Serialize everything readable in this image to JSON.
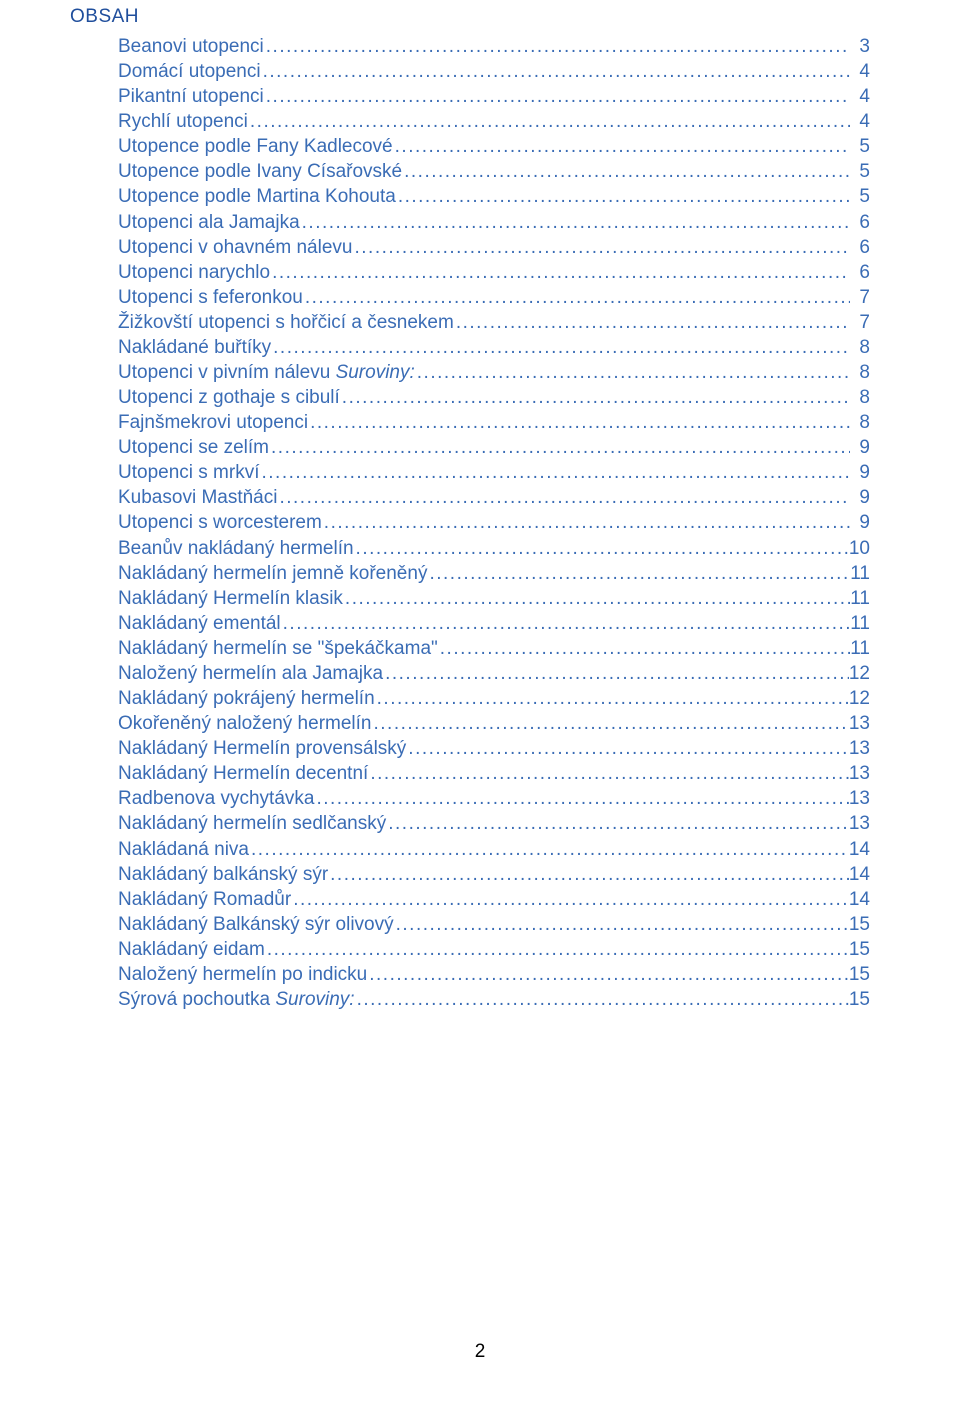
{
  "heading": "OBSAH",
  "page_number": "2",
  "colors": {
    "text": "#3a6cb5",
    "heading": "#1f4e9c",
    "background": "#ffffff"
  },
  "typography": {
    "font_family": "Arial",
    "font_size": 19,
    "line_height": 1.32
  },
  "toc": [
    {
      "title": "Beanovi utopenci",
      "page": "3",
      "italic_suffix": ""
    },
    {
      "title": "Domácí utopenci",
      "page": "4",
      "italic_suffix": ""
    },
    {
      "title": "Pikantní utopenci",
      "page": "4",
      "italic_suffix": ""
    },
    {
      "title": "Rychlí utopenci",
      "page": "4",
      "italic_suffix": ""
    },
    {
      "title": "Utopence podle Fany Kadlecové",
      "page": "5",
      "italic_suffix": ""
    },
    {
      "title": "Utopence podle Ivany Císařovské",
      "page": "5",
      "italic_suffix": ""
    },
    {
      "title": "Utopence podle Martina Kohouta",
      "page": "5",
      "italic_suffix": ""
    },
    {
      "title": "Utopenci ala Jamajka",
      "page": "6",
      "italic_suffix": ""
    },
    {
      "title": "Utopenci v ohavném nálevu",
      "page": "6",
      "italic_suffix": ""
    },
    {
      "title": "Utopenci narychlo",
      "page": "6",
      "italic_suffix": ""
    },
    {
      "title": "Utopenci s feferonkou",
      "page": "7",
      "italic_suffix": ""
    },
    {
      "title": "Žižkovští utopenci s hořčicí a česnekem",
      "page": "7",
      "italic_suffix": ""
    },
    {
      "title": "Nakládané buřtíky",
      "page": "8",
      "italic_suffix": ""
    },
    {
      "title": "Utopenci v pivním nálevu  ",
      "page": "8",
      "italic_suffix": "Suroviny:"
    },
    {
      "title": "Utopenci z gothaje s cibulí",
      "page": "8",
      "italic_suffix": ""
    },
    {
      "title": "Fajnšmekrovi utopenci",
      "page": "8",
      "italic_suffix": ""
    },
    {
      "title": "Utopenci se zelím",
      "page": "9",
      "italic_suffix": ""
    },
    {
      "title": "Utopenci s mrkví",
      "page": "9",
      "italic_suffix": ""
    },
    {
      "title": "Kubasovi Mastňáci",
      "page": "9",
      "italic_suffix": ""
    },
    {
      "title": "Utopenci s worcesterem",
      "page": "9",
      "italic_suffix": ""
    },
    {
      "title": "Beanův nakládaný hermelín",
      "page": "10",
      "italic_suffix": ""
    },
    {
      "title": "Nakládaný hermelín jemně kořeněný",
      "page": "11",
      "italic_suffix": ""
    },
    {
      "title": "Nakládaný Hermelín klasik",
      "page": "11",
      "italic_suffix": ""
    },
    {
      "title": "Nakládaný ementál",
      "page": "11",
      "italic_suffix": ""
    },
    {
      "title": "Nakládaný hermelín se \"špekáčkama\"",
      "page": "11",
      "italic_suffix": ""
    },
    {
      "title": "Naložený hermelín ala Jamajka",
      "page": "12",
      "italic_suffix": ""
    },
    {
      "title": "Nakládaný pokrájený hermelín",
      "page": "12",
      "italic_suffix": ""
    },
    {
      "title": "Okořeněný naložený hermelín",
      "page": "13",
      "italic_suffix": ""
    },
    {
      "title": "Nakládaný Hermelín provensálský",
      "page": "13",
      "italic_suffix": ""
    },
    {
      "title": "Nakládaný Hermelín decentní",
      "page": "13",
      "italic_suffix": ""
    },
    {
      "title": "Radbenova vychytávka",
      "page": "13",
      "italic_suffix": ""
    },
    {
      "title": "Nakládaný hermelín sedlčanský",
      "page": "13",
      "italic_suffix": ""
    },
    {
      "title": "Nakládaná niva",
      "page": "14",
      "italic_suffix": ""
    },
    {
      "title": "Nakládaný balkánský sýr",
      "page": "14",
      "italic_suffix": ""
    },
    {
      "title": "Nakládaný Romadůr",
      "page": "14",
      "italic_suffix": ""
    },
    {
      "title": "Nakládaný Balkánský sýr olivový",
      "page": "15",
      "italic_suffix": ""
    },
    {
      "title": "Nakládaný eidam",
      "page": "15",
      "italic_suffix": ""
    },
    {
      "title": "Naložený hermelín po indicku",
      "page": "15",
      "italic_suffix": ""
    },
    {
      "title": "Sýrová pochoutka ",
      "page": "15",
      "italic_suffix": "Suroviny:"
    }
  ]
}
